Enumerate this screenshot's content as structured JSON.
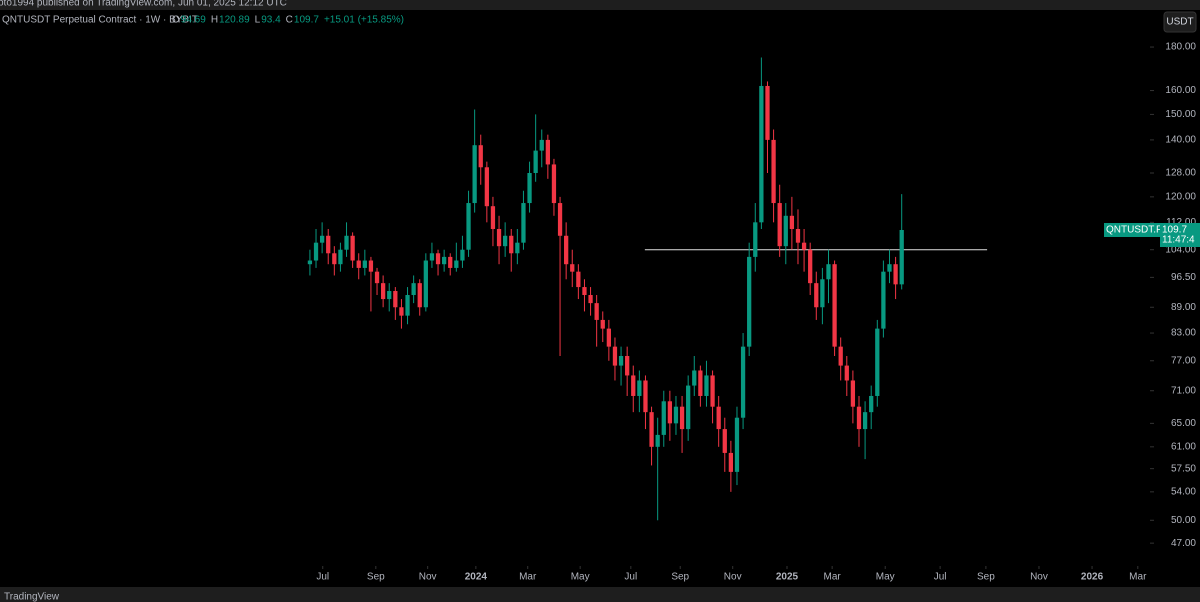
{
  "header": {
    "publisher": "pto1994 published on TradingView.com, Jun 01, 2025 12:12 UTC",
    "footer": "TradingView"
  },
  "chart_data": {
    "type": "candlestick",
    "title": "QNTUSDT Perpetual Contract · 1W · BYBIT",
    "ohlc_labels": [
      "O",
      "H",
      "L",
      "C"
    ],
    "change": "+15.01 (+15.85%)",
    "currency": "USDT",
    "symbol_tag": "QNTUSDT.P",
    "countdown": "11:47:4",
    "up_color": "#089981",
    "down_color": "#f23645",
    "log_scale": true,
    "series": [
      {
        "name": "QNTUSDT",
        "open": [
          100,
          101,
          106,
          108,
          103,
          100,
          104,
          108,
          101,
          99,
          101,
          98,
          95,
          91,
          93,
          89,
          87,
          92,
          95,
          89,
          101,
          103,
          100,
          102,
          99,
          101,
          104,
          118,
          138,
          130,
          117,
          110,
          105,
          108,
          103,
          106,
          118,
          128,
          136,
          140,
          131,
          118,
          108,
          100,
          98,
          94,
          92,
          90,
          86,
          84,
          80,
          76,
          78,
          74,
          70,
          73,
          67,
          61,
          63,
          69,
          65,
          68,
          64,
          72,
          75,
          70,
          74,
          68,
          64,
          60,
          57,
          66,
          80,
          102,
          112,
          162,
          140,
          118,
          105,
          114,
          110,
          106,
          104,
          95,
          89,
          96,
          100,
          80,
          76,
          73,
          68,
          64,
          67,
          70,
          84,
          98,
          100,
          94.69
        ],
        "high": [
          104,
          110,
          112,
          110,
          105,
          106,
          112,
          109,
          103,
          104,
          102,
          99,
          97,
          95,
          94,
          91,
          94,
          97,
          96,
          103,
          106,
          104,
          104,
          103,
          106,
          108,
          122,
          152,
          142,
          132,
          120,
          114,
          112,
          110,
          110,
          122,
          132,
          150,
          144,
          142,
          133,
          120,
          112,
          104,
          100,
          96,
          94,
          92,
          88,
          86,
          82,
          80,
          80,
          76,
          75,
          74,
          68,
          66,
          71,
          71,
          70,
          70,
          74,
          78,
          76,
          77,
          75,
          70,
          66,
          62,
          68,
          83,
          106,
          118,
          175,
          164,
          144,
          124,
          118,
          120,
          116,
          110,
          106,
          98,
          99,
          104,
          101,
          82,
          78,
          75,
          70,
          69,
          72,
          86,
          101,
          104,
          102,
          120.89
        ],
        "low": [
          97,
          99,
          103,
          100,
          97,
          98,
          102,
          99,
          96,
          97,
          88,
          92,
          89,
          88,
          86,
          84,
          85,
          90,
          87,
          88,
          99,
          97,
          98,
          97,
          98,
          99,
          102,
          115,
          124,
          112,
          105,
          100,
          102,
          98,
          100,
          104,
          115,
          125,
          130,
          126,
          114,
          78,
          96,
          94,
          91,
          88,
          87,
          80,
          81,
          77,
          73,
          72,
          70,
          67,
          67,
          64,
          58,
          50,
          61,
          62,
          63,
          60,
          62,
          70,
          68,
          68,
          65,
          61,
          57,
          54,
          55,
          64,
          78,
          98,
          110,
          128,
          112,
          102,
          100,
          104,
          100,
          98,
          92,
          86,
          85,
          90,
          78,
          73,
          70,
          65,
          61,
          59,
          64,
          68,
          82,
          95,
          91,
          93.4
        ],
        "close": [
          101,
          106,
          108,
          103,
          100,
          104,
          108,
          101,
          99,
          101,
          98,
          95,
          91,
          93,
          89,
          87,
          92,
          95,
          89,
          101,
          103,
          100,
          102,
          99,
          101,
          104,
          118,
          138,
          130,
          117,
          110,
          105,
          108,
          103,
          106,
          118,
          128,
          136,
          140,
          131,
          118,
          108,
          100,
          98,
          94,
          92,
          90,
          86,
          84,
          80,
          76,
          78,
          74,
          70,
          73,
          67,
          61,
          63,
          69,
          65,
          68,
          64,
          72,
          75,
          70,
          74,
          68,
          64,
          60,
          57,
          66,
          80,
          102,
          112,
          162,
          140,
          118,
          105,
          114,
          110,
          106,
          104,
          95,
          89,
          96,
          100,
          80,
          76,
          73,
          68,
          64,
          67,
          70,
          84,
          98,
          100,
          94.69,
          109.7
        ]
      }
    ],
    "hline": {
      "value": 104,
      "xrange": [
        54.9,
        111
      ]
    },
    "ylim": [
      44.3,
      188.5
    ],
    "yticks": [
      {
        "value": 180,
        "label": "180.00"
      },
      {
        "value": 160,
        "label": "160.00"
      },
      {
        "value": 150,
        "label": "150.00"
      },
      {
        "value": 140,
        "label": "140.00"
      },
      {
        "value": 128,
        "label": "128.00"
      },
      {
        "value": 120,
        "label": "120.00"
      },
      {
        "value": 112,
        "label": "112.00"
      },
      {
        "value": 104,
        "label": "104.00"
      },
      {
        "value": 96.5,
        "label": "96.50"
      },
      {
        "value": 89,
        "label": "89.00"
      },
      {
        "value": 83,
        "label": "83.00"
      },
      {
        "value": 77,
        "label": "77.00"
      },
      {
        "value": 71,
        "label": "71.00"
      },
      {
        "value": 65,
        "label": "65.00"
      },
      {
        "value": 61,
        "label": "61.00"
      },
      {
        "value": 57.5,
        "label": "57.50"
      },
      {
        "value": 54,
        "label": "54.00"
      },
      {
        "value": 50,
        "label": "50.00"
      },
      {
        "value": 47,
        "label": "47.00"
      }
    ],
    "xlim": [
      -50.8,
      137.7
    ],
    "xticks": [
      {
        "value": 2.1,
        "label": "Jul"
      },
      {
        "value": 10.8,
        "label": "Sep"
      },
      {
        "value": 19.3,
        "label": "Nov"
      },
      {
        "value": 27.2,
        "label": "2024"
      },
      {
        "value": 35.7,
        "label": "Mar"
      },
      {
        "value": 44.3,
        "label": "May"
      },
      {
        "value": 52.6,
        "label": "Jul"
      },
      {
        "value": 60.7,
        "label": "Sep"
      },
      {
        "value": 69.3,
        "label": "Nov"
      },
      {
        "value": 78.2,
        "label": "2025"
      },
      {
        "value": 85.6,
        "label": "Mar"
      },
      {
        "value": 94.3,
        "label": "May"
      },
      {
        "value": 103.3,
        "label": "Jul"
      },
      {
        "value": 110.8,
        "label": "Sep"
      },
      {
        "value": 119.5,
        "label": "Nov"
      },
      {
        "value": 128.2,
        "label": "2026"
      },
      {
        "value": 135.7,
        "label": "Mar"
      }
    ]
  }
}
